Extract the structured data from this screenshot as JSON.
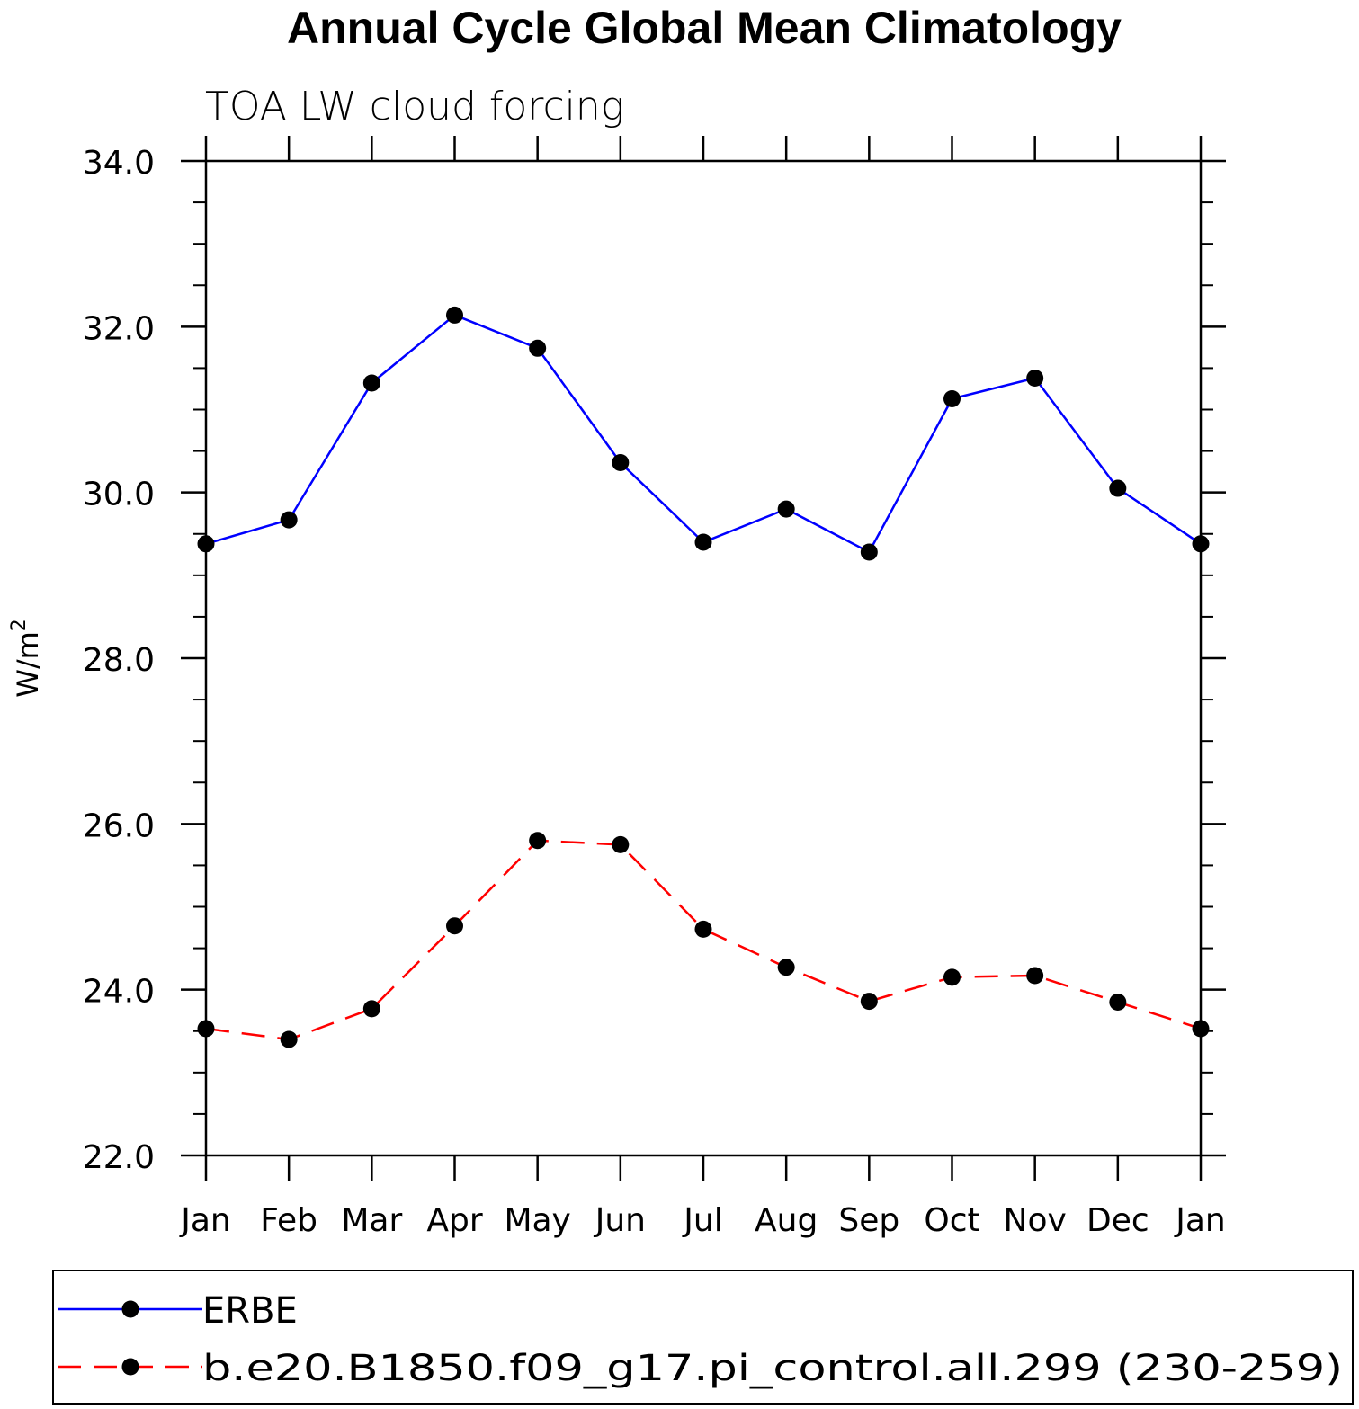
{
  "chart_data": {
    "type": "line",
    "title": "Annual Cycle Global Mean Climatology",
    "subtitle": "TOA LW cloud forcing",
    "xlabel": "",
    "ylabel": "W/m",
    "ylabel_superscript": "2",
    "categories": [
      "Jan",
      "Feb",
      "Mar",
      "Apr",
      "May",
      "Jun",
      "Jul",
      "Aug",
      "Sep",
      "Oct",
      "Nov",
      "Dec",
      "Jan"
    ],
    "ylim": [
      22.0,
      34.0
    ],
    "y_ticks": [
      "22.0",
      "24.0",
      "26.0",
      "28.0",
      "30.0",
      "32.0",
      "34.0"
    ],
    "y_tick_values": [
      22,
      24,
      26,
      28,
      30,
      32,
      34
    ],
    "y_minor_step": 0.5,
    "grid": false,
    "legend_position": "bottom",
    "series": [
      {
        "name": "ERBE",
        "color": "#0000ff",
        "line_style": "solid",
        "values": [
          29.38,
          29.67,
          31.32,
          32.14,
          31.74,
          30.36,
          29.4,
          29.8,
          29.28,
          31.13,
          31.38,
          30.05,
          29.38
        ]
      },
      {
        "name": "b.e20.B1850.f09_g17.pi_control.all.299 (230-259)",
        "color": "#ff0000",
        "line_style": "dashed",
        "values": [
          23.53,
          23.4,
          23.77,
          24.77,
          25.8,
          25.75,
          24.73,
          24.27,
          23.86,
          24.15,
          24.17,
          23.85,
          23.53
        ]
      }
    ]
  }
}
